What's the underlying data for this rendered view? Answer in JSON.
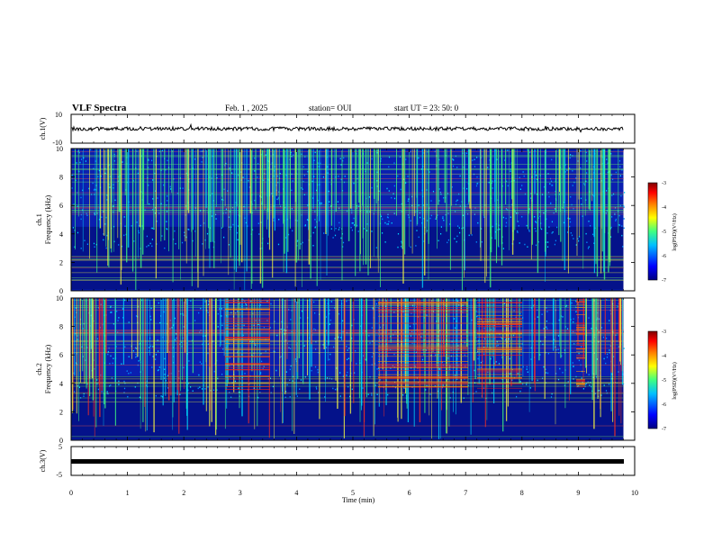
{
  "header": {
    "title": "VLF Spectra",
    "date": "Feb. 1 , 2025",
    "station": "station= OUI",
    "start": "start UT =  23: 50: 0"
  },
  "chart_data": [
    {
      "type": "line",
      "panel": "ch1-waveform",
      "ylabel": "ch.1(V)",
      "yticks": [
        "10",
        "-10"
      ],
      "ylim": [
        -10,
        10
      ]
    },
    {
      "type": "heatmap",
      "panel": "ch1-spectrogram",
      "ylabel_line1": "ch.1",
      "ylabel_line2": "Frequency (kHz)",
      "yticks": [
        "0",
        "2",
        "4",
        "6",
        "8",
        "10"
      ],
      "ylim": [
        0,
        10
      ],
      "colorbar": {
        "label": "log(PSD)(V²/Hz)",
        "ticks": [
          "-3",
          "-4",
          "-5",
          "-6",
          "-7"
        ],
        "range": [
          -7,
          -3
        ],
        "colors": [
          "#00007f",
          "#0000ff",
          "#00c0ff",
          "#40ff80",
          "#ffff00",
          "#ff8000",
          "#ff0000",
          "#7f0000"
        ]
      }
    },
    {
      "type": "heatmap",
      "panel": "ch2-spectrogram",
      "ylabel_line1": "ch.2",
      "ylabel_line2": "Frequency (kHz)",
      "yticks": [
        "0",
        "2",
        "4",
        "6",
        "8",
        "10"
      ],
      "ylim": [
        0,
        10
      ],
      "colorbar": {
        "label": "log(PSD)(V²/Hz)",
        "ticks": [
          "-3",
          "-4",
          "-5",
          "-6",
          "-7"
        ],
        "range": [
          -7,
          -3
        ],
        "colors": [
          "#00007f",
          "#0000ff",
          "#00c0ff",
          "#40ff80",
          "#ffff00",
          "#ff8000",
          "#ff0000",
          "#7f0000"
        ]
      }
    },
    {
      "type": "line",
      "panel": "ch3-waveform",
      "ylabel": "ch.3(V)",
      "yticks": [
        "5",
        "-5"
      ],
      "ylim": [
        -5,
        5
      ]
    }
  ],
  "xaxis": {
    "label": "Time (min)",
    "ticks": [
      "0",
      "1",
      "2",
      "3",
      "4",
      "5",
      "6",
      "7",
      "8",
      "9",
      "10"
    ],
    "xlim": [
      0,
      10
    ]
  }
}
